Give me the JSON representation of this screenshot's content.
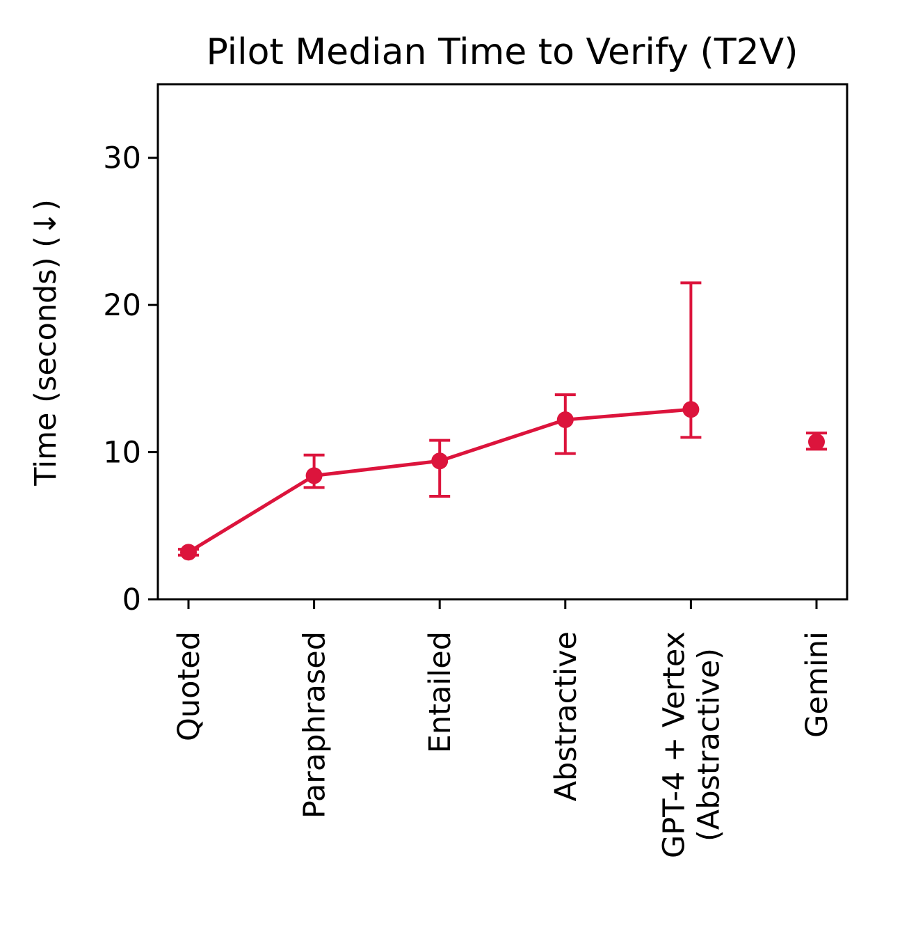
{
  "chart_data": {
    "type": "line",
    "title": "Pilot Median Time to Verify (T2V)",
    "xlabel": "",
    "ylabel": "Time (seconds) (↓)",
    "ylim": [
      0,
      35
    ],
    "yticks": [
      0,
      10,
      20,
      30
    ],
    "categories": [
      "Quoted",
      "Paraphrased",
      "Entailed",
      "Abstractive",
      "GPT-4 + Vertex\n(Abstractive)",
      "Gemini"
    ],
    "color": "#dc143c",
    "grid": false,
    "series": [
      {
        "line_segment": [
          0,
          1,
          2,
          3,
          4
        ],
        "values": [
          3.2,
          8.4,
          9.4,
          12.2,
          12.9,
          10.7
        ],
        "error_low": [
          3.0,
          7.6,
          7.0,
          9.9,
          11.0,
          10.2
        ],
        "error_high": [
          3.4,
          9.8,
          10.8,
          13.9,
          21.5,
          11.3
        ]
      }
    ]
  }
}
